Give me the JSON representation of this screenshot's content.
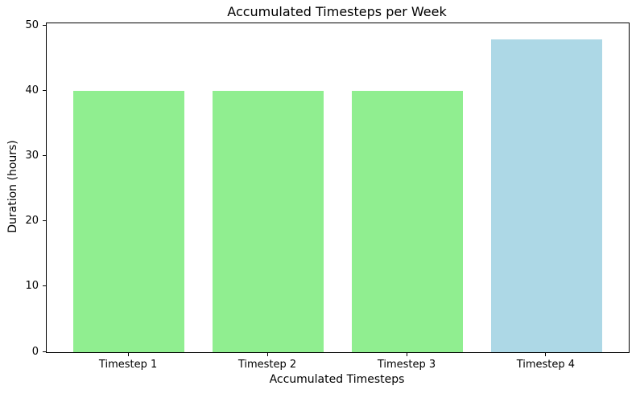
{
  "chart_data": {
    "type": "bar",
    "title": "Accumulated Timesteps per Week",
    "xlabel": "Accumulated Timesteps",
    "ylabel": "Duration (hours)",
    "categories": [
      "Timestep 1",
      "Timestep 2",
      "Timestep 3",
      "Timestep 4"
    ],
    "values": [
      40,
      40,
      40,
      48
    ],
    "bar_colors": [
      "#90EE90",
      "#90EE90",
      "#90EE90",
      "#ADD8E6"
    ],
    "bar_width": 0.8,
    "yticks": [
      0,
      10,
      20,
      30,
      40,
      50
    ],
    "ylim": [
      0,
      50.4
    ],
    "xlim": [
      -0.59,
      3.59
    ],
    "grid": false,
    "legend_position": "none",
    "background_color": "#FFFFFF",
    "spine_color": "#000000",
    "text_color": "#000000"
  }
}
